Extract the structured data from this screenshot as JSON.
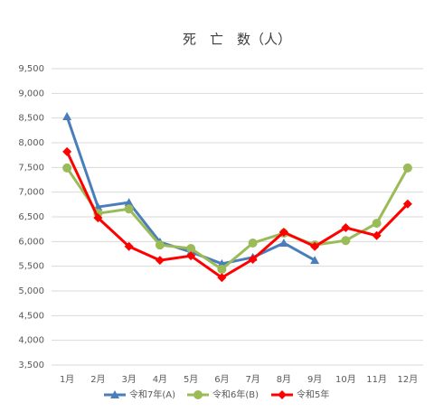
{
  "chart_data": {
    "type": "line",
    "title": "死　亡　数（人）",
    "categories": [
      "1月",
      "2月",
      "3月",
      "4月",
      "5月",
      "6月",
      "7月",
      "8月",
      "9月",
      "10月",
      "11月",
      "12月"
    ],
    "series": [
      {
        "name": "令和7年(A)",
        "color": "#4a7ebb",
        "marker": "triangle",
        "values": [
          8530,
          6700,
          6790,
          5990,
          5790,
          5550,
          5680,
          5970,
          5620,
          null,
          null,
          null
        ]
      },
      {
        "name": "令和6年(B)",
        "color": "#9bbb59",
        "marker": "circle",
        "values": [
          7490,
          6570,
          6660,
          5930,
          5860,
          5440,
          5970,
          6170,
          5930,
          6020,
          6370,
          7490
        ]
      },
      {
        "name": "令和5年",
        "color": "#ff0000",
        "marker": "diamond",
        "values": [
          7820,
          6480,
          5900,
          5620,
          5710,
          5270,
          5640,
          6190,
          5900,
          6280,
          6120,
          6760
        ]
      }
    ],
    "ylim": [
      3500,
      9500
    ],
    "yticks": [
      {
        "value": 3500,
        "label": "3,500"
      },
      {
        "value": 4000,
        "label": "4,000"
      },
      {
        "value": 4500,
        "label": "4,500"
      },
      {
        "value": 5000,
        "label": "5,000"
      },
      {
        "value": 5500,
        "label": "5,500"
      },
      {
        "value": 6000,
        "label": "6,000"
      },
      {
        "value": 6500,
        "label": "6,500"
      },
      {
        "value": 7000,
        "label": "7,000"
      },
      {
        "value": 7500,
        "label": "7,500"
      },
      {
        "value": 8000,
        "label": "8,000"
      },
      {
        "value": 8500,
        "label": "8,500"
      },
      {
        "value": 9000,
        "label": "9,000"
      },
      {
        "value": 9500,
        "label": "9,500"
      }
    ],
    "grid": true,
    "legend": "bottom"
  }
}
